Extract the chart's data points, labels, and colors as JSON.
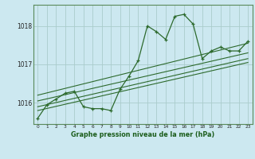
{
  "title": "Graphe pression niveau de la mer (hPa)",
  "bg_color": "#cce8f0",
  "grid_color": "#aacccc",
  "line_color": "#2d6a2d",
  "marker_color": "#2d6a2d",
  "x_values": [
    0,
    1,
    2,
    3,
    4,
    5,
    6,
    7,
    8,
    9,
    10,
    11,
    12,
    13,
    14,
    15,
    16,
    17,
    18,
    19,
    20,
    21,
    22,
    23
  ],
  "y_main": [
    1015.6,
    1015.95,
    1016.1,
    1016.25,
    1016.3,
    1015.9,
    1015.85,
    1015.85,
    1015.8,
    1016.35,
    1016.7,
    1017.1,
    1018.0,
    1017.85,
    1017.65,
    1018.25,
    1018.3,
    1018.05,
    1017.15,
    1017.35,
    1017.45,
    1017.35,
    1017.35,
    1017.6
  ],
  "trends": [
    {
      "x": [
        0,
        23
      ],
      "y": [
        1015.8,
        1017.05
      ]
    },
    {
      "x": [
        0,
        23
      ],
      "y": [
        1015.9,
        1017.15
      ]
    },
    {
      "x": [
        0,
        23
      ],
      "y": [
        1016.05,
        1017.3
      ]
    },
    {
      "x": [
        0,
        23
      ],
      "y": [
        1016.2,
        1017.55
      ]
    }
  ],
  "ylim": [
    1015.45,
    1018.55
  ],
  "yticks": [
    1016,
    1017,
    1018
  ],
  "xlim": [
    -0.5,
    23.5
  ],
  "border_color": "#5a8a5a"
}
